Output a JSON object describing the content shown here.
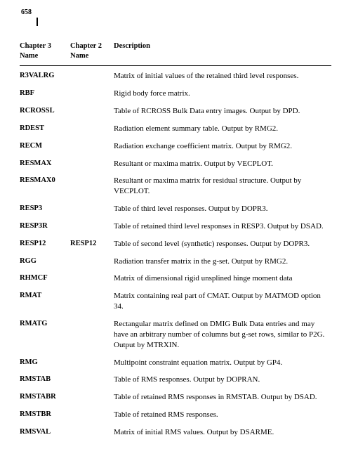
{
  "page_number": "658",
  "headers": {
    "ch3": "Chapter 3 Name",
    "ch2": "Chapter 2 Name",
    "desc": "Description"
  },
  "rows": [
    {
      "ch3": "R3VALRG",
      "ch2": "",
      "desc": "Matrix of initial values of the retained third level responses."
    },
    {
      "ch3": "RBF",
      "ch2": "",
      "desc": "Rigid body force matrix."
    },
    {
      "ch3": "RCROSSL",
      "ch2": "",
      "desc": "Table of RCROSS Bulk Data entry images. Output by DPD."
    },
    {
      "ch3": "RDEST",
      "ch2": "",
      "desc": "Radiation element summary table. Output by RMG2."
    },
    {
      "ch3": "RECM",
      "ch2": "",
      "desc": "Radiation exchange coefficient matrix. Output by RMG2."
    },
    {
      "ch3": "RESMAX",
      "ch2": "",
      "desc": "Resultant or maxima matrix.  Output by VECPLOT."
    },
    {
      "ch3": "RESMAX0",
      "ch2": "",
      "desc": "Resultant or maxima matrix for residual structure. Output by VECPLOT."
    },
    {
      "ch3": "RESP3",
      "ch2": "",
      "desc": "Table of third level responses. Output by DOPR3."
    },
    {
      "ch3": "RESP3R",
      "ch2": "",
      "desc": "Table of retained third level responses in RESP3. Output by DSAD."
    },
    {
      "ch3": "RESP12",
      "ch2": "RESP12",
      "desc": "Table of second level (synthetic) responses. Output by DOPR3."
    },
    {
      "ch3": "RGG",
      "ch2": "",
      "desc": "Radiation transfer matrix in the g-set. Output by RMG2."
    },
    {
      "ch3": "RHMCF",
      "ch2": "",
      "desc": "Matrix of dimensional rigid unsplined hinge moment data"
    },
    {
      "ch3": "RMAT",
      "ch2": "",
      "desc": "Matrix containing real part of CMAT. Output by MATMOD option 34."
    },
    {
      "ch3": "RMATG",
      "ch2": "",
      "desc": "Rectangular matrix defined on DMIG Bulk Data entries and may have an arbitrary number of columns but g-set rows, similar to P2G. Output by MTRXIN."
    },
    {
      "ch3": "RMG",
      "ch2": "",
      "desc": "Multipoint constraint equation matrix. Output by GP4."
    },
    {
      "ch3": "RMSTAB",
      "ch2": "",
      "desc": "Table of RMS responses. Output by DOPRAN."
    },
    {
      "ch3": "RMSTABR",
      "ch2": "",
      "desc": "Table of retained RMS responses in RMSTAB. Output by DSAD."
    },
    {
      "ch3": "RMSTBR",
      "ch2": "",
      "desc": "Table of retained RMS responses."
    },
    {
      "ch3": "RMSVAL",
      "ch2": "",
      "desc": "Matrix of initial RMS values. Output by DSARME."
    }
  ]
}
